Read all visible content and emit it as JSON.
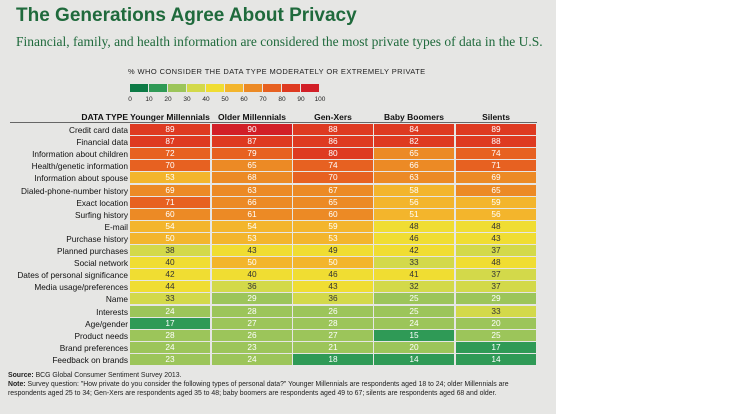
{
  "title": "The Generations Agree About Privacy",
  "subtitle": "Financial, family, and health information are considered the most private types of data in the U.S.",
  "legend": {
    "title": "% WHO CONSIDER THE DATA TYPE MODERATELY OR EXTREMELY PRIVATE",
    "ticks": [
      "0",
      "10",
      "20",
      "30",
      "40",
      "50",
      "60",
      "70",
      "80",
      "90",
      "100"
    ],
    "colors": [
      "#0c7a45",
      "#2f9a56",
      "#9cc55a",
      "#d3d94a",
      "#f0dd32",
      "#f3b52c",
      "#ec8a25",
      "#e76121",
      "#de3a21",
      "#d21f27"
    ]
  },
  "chart_data": {
    "type": "table",
    "row_header": "DATA TYPE",
    "columns": [
      "Younger Millennials",
      "Older Millennials",
      "Gen-Xers",
      "Baby Boomers",
      "Silents"
    ],
    "rows": [
      {
        "label": "Credit card data",
        "values": [
          89,
          90,
          88,
          84,
          89
        ]
      },
      {
        "label": "Financial data",
        "values": [
          87,
          87,
          86,
          82,
          88
        ]
      },
      {
        "label": "Information about children",
        "values": [
          72,
          79,
          80,
          65,
          74
        ]
      },
      {
        "label": "Health/genetic information",
        "values": [
          70,
          65,
          74,
          66,
          71
        ]
      },
      {
        "label": "Information about spouse",
        "values": [
          53,
          68,
          70,
          63,
          69
        ]
      },
      {
        "label": "Dialed-phone-number history",
        "values": [
          69,
          63,
          67,
          58,
          65
        ]
      },
      {
        "label": "Exact location",
        "values": [
          71,
          66,
          65,
          56,
          59
        ]
      },
      {
        "label": "Surfing history",
        "values": [
          60,
          61,
          60,
          51,
          56
        ]
      },
      {
        "label": "E-mail",
        "values": [
          54,
          54,
          59,
          48,
          48
        ]
      },
      {
        "label": "Purchase history",
        "values": [
          50,
          53,
          53,
          46,
          43
        ]
      },
      {
        "label": "Planned purchases",
        "values": [
          38,
          43,
          49,
          42,
          37
        ]
      },
      {
        "label": "Social network",
        "values": [
          40,
          50,
          50,
          33,
          48
        ]
      },
      {
        "label": "Dates of personal significance",
        "values": [
          42,
          40,
          46,
          41,
          37
        ]
      },
      {
        "label": "Media usage/preferences",
        "values": [
          44,
          36,
          43,
          32,
          37
        ]
      },
      {
        "label": "Name",
        "values": [
          33,
          29,
          36,
          25,
          29
        ]
      },
      {
        "label": "Interests",
        "values": [
          24,
          28,
          26,
          25,
          33
        ]
      },
      {
        "label": "Age/gender",
        "values": [
          17,
          27,
          28,
          24,
          20
        ]
      },
      {
        "label": "Product needs",
        "values": [
          28,
          26,
          27,
          15,
          25
        ]
      },
      {
        "label": "Brand preferences",
        "values": [
          24,
          23,
          21,
          20,
          17
        ]
      },
      {
        "label": "Feedback on brands",
        "values": [
          23,
          24,
          18,
          14,
          14
        ]
      }
    ]
  },
  "footer": {
    "source_label": "Source:",
    "source": "BCG Global Consumer Sentiment Survey 2013.",
    "note_label": "Note:",
    "note": "Survey question: \"How private do you consider the following types of personal data?\" Younger Millennials are respondents aged 18 to 24; older Millennials are respondents aged 25 to 34; Gen-Xers are respondents aged 35 to 48; baby boomers are respondents aged 49 to 67; silents are respondents aged 68 and older."
  }
}
